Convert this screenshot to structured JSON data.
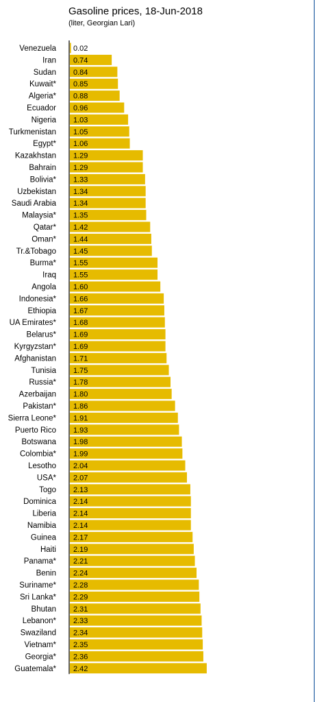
{
  "chart_data": {
    "type": "bar",
    "orientation": "horizontal",
    "title": "Gasoline prices, 18-Jun-2018",
    "subtitle": "(liter, Georgian Lari)",
    "categories": [
      "Venezuela",
      "Iran",
      "Sudan",
      "Kuwait*",
      "Algeria*",
      "Ecuador",
      "Nigeria",
      "Turkmenistan",
      "Egypt*",
      "Kazakhstan",
      "Bahrain",
      "Bolivia*",
      "Uzbekistan",
      "Saudi Arabia",
      "Malaysia*",
      "Qatar*",
      "Oman*",
      "Tr.&Tobago",
      "Burma*",
      "Iraq",
      "Angola",
      "Indonesia*",
      "Ethiopia",
      "UA Emirates*",
      "Belarus*",
      "Kyrgyzstan*",
      "Afghanistan",
      "Tunisia",
      "Russia*",
      "Azerbaijan",
      "Pakistan*",
      "Sierra Leone*",
      "Puerto Rico",
      "Botswana",
      "Colombia*",
      "Lesotho",
      "USA*",
      "Togo",
      "Dominica",
      "Liberia",
      "Namibia",
      "Guinea",
      "Haiti",
      "Panama*",
      "Benin",
      "Suriname*",
      "Sri Lanka*",
      "Bhutan",
      "Lebanon*",
      "Swaziland",
      "Vietnam*",
      "Georgia*",
      "Guatemala*"
    ],
    "values": [
      0.02,
      0.74,
      0.84,
      0.85,
      0.88,
      0.96,
      1.03,
      1.05,
      1.06,
      1.29,
      1.29,
      1.33,
      1.34,
      1.34,
      1.35,
      1.42,
      1.44,
      1.45,
      1.55,
      1.55,
      1.6,
      1.66,
      1.67,
      1.68,
      1.69,
      1.69,
      1.71,
      1.75,
      1.78,
      1.8,
      1.86,
      1.91,
      1.93,
      1.98,
      1.99,
      2.04,
      2.07,
      2.13,
      2.14,
      2.14,
      2.14,
      2.17,
      2.19,
      2.21,
      2.24,
      2.28,
      2.29,
      2.31,
      2.33,
      2.34,
      2.35,
      2.36,
      2.42
    ],
    "value_labels": [
      "0.02",
      "0.74",
      "0.84",
      "0.85",
      "0.88",
      "0.96",
      "1.03",
      "1.05",
      "1.06",
      "1.29",
      "1.29",
      "1.33",
      "1.34",
      "1.34",
      "1.35",
      "1.42",
      "1.44",
      "1.45",
      "1.55",
      "1.55",
      "1.60",
      "1.66",
      "1.67",
      "1.68",
      "1.69",
      "1.69",
      "1.71",
      "1.75",
      "1.78",
      "1.80",
      "1.86",
      "1.91",
      "1.93",
      "1.98",
      "1.99",
      "2.04",
      "2.07",
      "2.13",
      "2.14",
      "2.14",
      "2.14",
      "2.17",
      "2.19",
      "2.21",
      "2.24",
      "2.28",
      "2.29",
      "2.31",
      "2.33",
      "2.34",
      "2.35",
      "2.36",
      "2.42"
    ],
    "xlim": [
      0,
      2.42
    ],
    "grid": false,
    "legend": "none",
    "colors": {
      "bar": "#e6bb00",
      "axis": "#000000",
      "text": "#000000"
    }
  }
}
